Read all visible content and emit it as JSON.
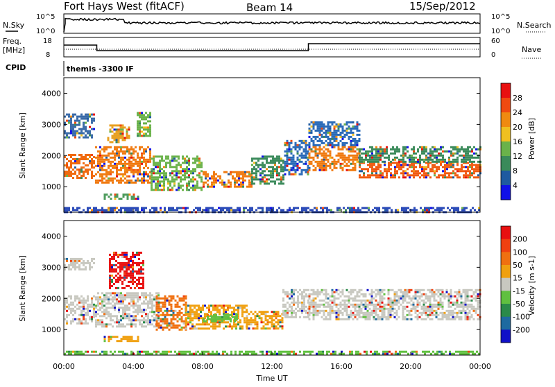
{
  "header": {
    "station": "Fort Hays West (fitACF)",
    "beam": "Beam 14",
    "date": "15/Sep/2012"
  },
  "summary": {
    "nsky_label": "N.Sky",
    "nsky_ticks": [
      "10^5",
      "10^0"
    ],
    "nsearch_label": "N.Search",
    "nsearch_ticks": [
      "10^5",
      "10^0"
    ],
    "freq_label": "Freq.",
    "freq_unit": "[MHz]",
    "freq_ticks": [
      "18",
      "8"
    ],
    "nave_label": "Nave",
    "nave_ticks": [
      "60",
      "0"
    ],
    "cpid_label": "CPID",
    "cpid_value": "themis -3300 IF"
  },
  "chart_data": [
    {
      "type": "heatmap",
      "panel": "power",
      "ylabel": "Slant Range [km]",
      "yticks": [
        1000,
        2000,
        3000,
        4000
      ],
      "ylim": [
        180,
        4500
      ],
      "xlim": [
        0,
        24
      ],
      "colorbar": {
        "label": "Power [dB]",
        "ticks": [
          "4",
          "8",
          "12",
          "16",
          "20",
          "24",
          "28"
        ],
        "colors": [
          "#1010e8",
          "#1e5aa0",
          "#3a8a5a",
          "#6ab24a",
          "#f0c020",
          "#f08a10",
          "#f04a10",
          "#e81010"
        ]
      },
      "bands": [
        {
          "t": [
            0.0,
            1.8
          ],
          "r": [
            1250,
            2050
          ],
          "color": "#f06a10"
        },
        {
          "t": [
            0.0,
            1.8
          ],
          "r": [
            2550,
            3350
          ],
          "color": "#3a6aa8"
        },
        {
          "t": [
            1.8,
            5.0
          ],
          "r": [
            1100,
            2300
          ],
          "color": "#f07a10"
        },
        {
          "t": [
            2.5,
            3.8
          ],
          "r": [
            2400,
            3000
          ],
          "color": "#e8a020"
        },
        {
          "t": [
            4.2,
            5.0
          ],
          "r": [
            2600,
            3400
          ],
          "color": "#6ab24a"
        },
        {
          "t": [
            2.3,
            4.3
          ],
          "r": [
            600,
            780
          ],
          "color": "#4a9a5a"
        },
        {
          "t": [
            5.0,
            8.0
          ],
          "r": [
            900,
            2000
          ],
          "color": "#6ab24a"
        },
        {
          "t": [
            8.0,
            10.8
          ],
          "r": [
            1000,
            1500
          ],
          "color": "#f07a10"
        },
        {
          "t": [
            10.8,
            12.7
          ],
          "r": [
            1100,
            2000
          ],
          "color": "#3a8a5a"
        },
        {
          "t": [
            12.7,
            14.1
          ],
          "r": [
            1400,
            2500
          ],
          "color": "#2a6ab8"
        },
        {
          "t": [
            14.1,
            17.0
          ],
          "r": [
            1550,
            2300
          ],
          "color": "#f07a10"
        },
        {
          "t": [
            14.1,
            17.0
          ],
          "r": [
            2300,
            3100
          ],
          "color": "#2a6ab8"
        },
        {
          "t": [
            17.0,
            24.0
          ],
          "r": [
            1300,
            1800
          ],
          "color": "#f05a10"
        },
        {
          "t": [
            17.0,
            24.0
          ],
          "r": [
            1800,
            2300
          ],
          "color": "#3a8a5a"
        },
        {
          "t": [
            0.0,
            24.0
          ],
          "r": [
            200,
            350
          ],
          "color": "#2a4ab8"
        }
      ]
    },
    {
      "type": "heatmap",
      "panel": "velocity",
      "ylabel": "Slant Range [km]",
      "yticks": [
        1000,
        2000,
        3000,
        4000
      ],
      "ylim": [
        180,
        4500
      ],
      "xlim": [
        0,
        24
      ],
      "xticks": [
        "00:00",
        "04:00",
        "08:00",
        "12:00",
        "16:00",
        "20:00",
        "00:00"
      ],
      "xlabel": "Time UT",
      "colorbar": {
        "label": "Velocity [m s-1]",
        "ticks": [
          "200",
          "100",
          "50",
          "15",
          "-15",
          "-50",
          "-100",
          "-200"
        ],
        "colors": [
          "#1010c8",
          "#1e6aa0",
          "#2a8a4a",
          "#60c040",
          "#c8c8c0",
          "#f0a010",
          "#f07010",
          "#f04010",
          "#e81010"
        ]
      },
      "bands": [
        {
          "t": [
            0.0,
            1.8
          ],
          "r": [
            1200,
            2100
          ],
          "color": "#c8c8c0"
        },
        {
          "t": [
            0.0,
            1.8
          ],
          "r": [
            2900,
            3300
          ],
          "color": "#c8c8c0"
        },
        {
          "t": [
            1.8,
            5.5
          ],
          "r": [
            1100,
            2200
          ],
          "color": "#c8c8c0"
        },
        {
          "t": [
            2.6,
            4.6
          ],
          "r": [
            2350,
            3500
          ],
          "color": "#e81010"
        },
        {
          "t": [
            2.3,
            4.3
          ],
          "r": [
            600,
            800
          ],
          "color": "#f0a010"
        },
        {
          "t": [
            5.3,
            7.0
          ],
          "r": [
            1000,
            2100
          ],
          "color": "#f07010"
        },
        {
          "t": [
            7.0,
            10.5
          ],
          "r": [
            1000,
            1800
          ],
          "color": "#f0a010"
        },
        {
          "t": [
            8.0,
            10.0
          ],
          "r": [
            1250,
            1500
          ],
          "color": "#60c040"
        },
        {
          "t": [
            10.5,
            12.6
          ],
          "r": [
            1050,
            1600
          ],
          "color": "#f0a010"
        },
        {
          "t": [
            12.6,
            14.1
          ],
          "r": [
            1400,
            2300
          ],
          "color": "#c8c8c0"
        },
        {
          "t": [
            14.1,
            24.0
          ],
          "r": [
            1300,
            2300
          ],
          "color": "#c8c8c0"
        },
        {
          "t": [
            0.0,
            24.0
          ],
          "r": [
            200,
            320
          ],
          "color": "#60c040"
        }
      ]
    }
  ]
}
